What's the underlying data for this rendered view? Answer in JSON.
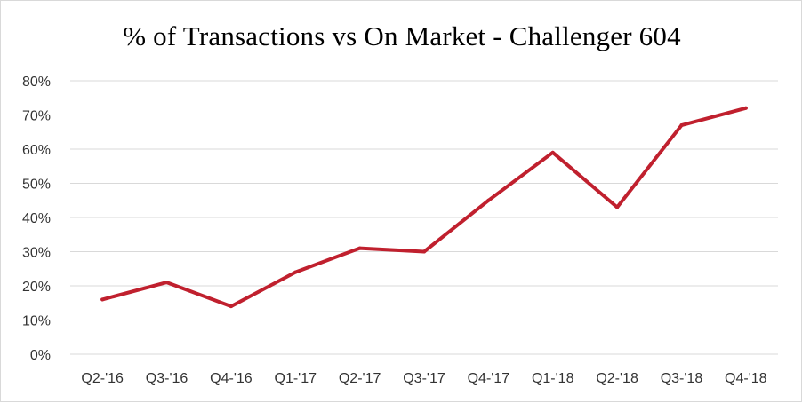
{
  "chart_data": {
    "type": "line",
    "title": "% of Transactions vs On Market - Challenger 604",
    "xlabel": "",
    "ylabel": "",
    "categories": [
      "Q2-'16",
      "Q3-'16",
      "Q4-'16",
      "Q1-'17",
      "Q2-'17",
      "Q3-'17",
      "Q4-'17",
      "Q1-'18",
      "Q2-'18",
      "Q3-'18",
      "Q4-'18"
    ],
    "series": [
      {
        "values": [
          16,
          21,
          14,
          24,
          31,
          30,
          45,
          59,
          43,
          67,
          72
        ],
        "color": "#c0202e"
      }
    ],
    "ylim": [
      0,
      80
    ],
    "yticks": [
      "0%",
      "10%",
      "20%",
      "30%",
      "40%",
      "50%",
      "60%",
      "70%",
      "80%"
    ],
    "grid": true,
    "legend": "none"
  }
}
